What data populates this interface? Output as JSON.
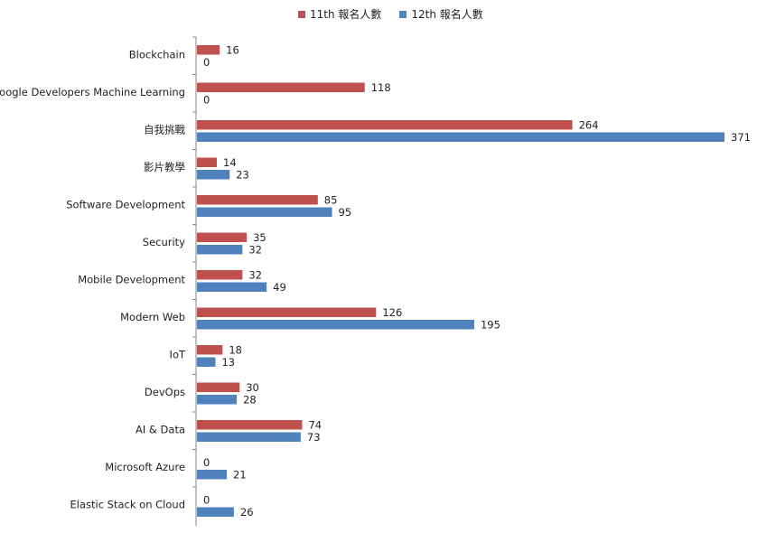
{
  "chart_data": {
    "type": "bar",
    "orientation": "horizontal",
    "categories": [
      "Blockchain",
      "Google Developers Machine Learning",
      "自我挑戰",
      "影片教學",
      "Software Development",
      "Security",
      "Mobile Development",
      "Modern Web",
      "IoT",
      "DevOps",
      "AI & Data",
      "Microsoft Azure",
      "Elastic Stack on Cloud"
    ],
    "series": [
      {
        "name": "11th 報名人數",
        "color": "#C0504D",
        "values": [
          16,
          118,
          264,
          14,
          85,
          35,
          32,
          126,
          18,
          30,
          74,
          0,
          0
        ]
      },
      {
        "name": "12th 報名人數",
        "color": "#4F81BD",
        "values": [
          0,
          0,
          371,
          23,
          95,
          32,
          49,
          195,
          13,
          28,
          73,
          21,
          26
        ]
      }
    ],
    "xlim": [
      0,
      371
    ],
    "grid": false,
    "legend_position": "top"
  }
}
